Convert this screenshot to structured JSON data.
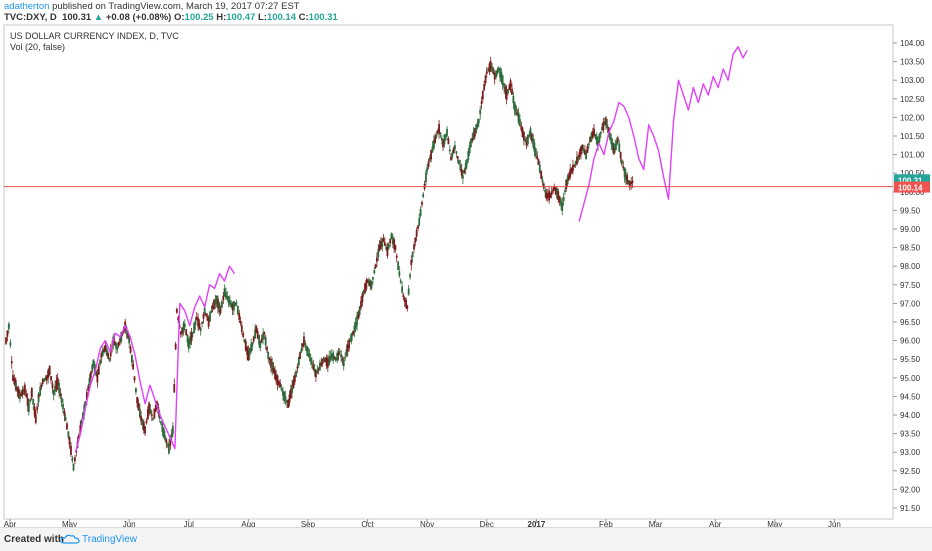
{
  "header": {
    "author": "adatherton",
    "published": "published on TradingView.com, March 19, 2017 07:27 EST",
    "symbol": "TVC:DXY, D",
    "last": "100.31",
    "change": "+0.08 (+0.08%)",
    "o_label": "O:",
    "o_value": "100.25",
    "h_label": "H:",
    "h_value": "100.47",
    "l_label": "L:",
    "l_value": "100.14",
    "c_label": "C:",
    "c_value": "100.31"
  },
  "footer": {
    "created": "Created with",
    "brand": "TradingView"
  },
  "colors": {
    "up": "#2e6b3a",
    "down": "#7a1c1c",
    "projection": "#e040fb",
    "hline": "#ef5350",
    "last_badge": "#26a69a",
    "line_badge": "#ef5350"
  },
  "chart_data": {
    "type": "line",
    "title": "US DOLLAR CURRENCY INDEX, D, TVC",
    "subtitle": "Vol (20, false)",
    "price_axis": {
      "min": 91.25,
      "max": 104.25,
      "ticks": [
        "91.50",
        "92.00",
        "92.50",
        "93.00",
        "93.50",
        "94.00",
        "94.50",
        "95.00",
        "95.50",
        "96.00",
        "96.50",
        "97.00",
        "97.50",
        "98.00",
        "98.50",
        "99.00",
        "99.50",
        "100.00",
        "100.50",
        "101.00",
        "101.50",
        "102.00",
        "102.50",
        "103.00",
        "103.50",
        "104.00"
      ]
    },
    "time_axis": {
      "labels": [
        "Apr",
        "May",
        "Jun",
        "Jul",
        "Aug",
        "Sep",
        "Oct",
        "Nov",
        "Dec",
        "2017",
        "Feb",
        "Mar",
        "Apr",
        "May",
        "Jun"
      ],
      "label_days": [
        4,
        64,
        124,
        184,
        244,
        304,
        364,
        424,
        484,
        534,
        604,
        654,
        714,
        774,
        834
      ]
    },
    "horizontal_line": {
      "price": 100.14,
      "label": "100.14"
    },
    "last_price": {
      "price": 100.31,
      "label": "100.31"
    },
    "price_path": [
      [
        0,
        96.0
      ],
      [
        3,
        96.4
      ],
      [
        7,
        95.0
      ],
      [
        10,
        94.8
      ],
      [
        14,
        94.5
      ],
      [
        19,
        94.7
      ],
      [
        23,
        94.2
      ],
      [
        26,
        94.6
      ],
      [
        30,
        93.9
      ],
      [
        33,
        94.5
      ],
      [
        37,
        94.9
      ],
      [
        41,
        95.0
      ],
      [
        44,
        95.2
      ],
      [
        48,
        94.6
      ],
      [
        52,
        94.9
      ],
      [
        56,
        94.4
      ],
      [
        60,
        93.9
      ],
      [
        64,
        93.3
      ],
      [
        68,
        92.6
      ],
      [
        72,
        93.2
      ],
      [
        76,
        93.8
      ],
      [
        80,
        94.3
      ],
      [
        84,
        94.9
      ],
      [
        88,
        95.4
      ],
      [
        92,
        95.0
      ],
      [
        96,
        95.6
      ],
      [
        100,
        95.8
      ],
      [
        104,
        95.5
      ],
      [
        108,
        96.0
      ],
      [
        112,
        95.8
      ],
      [
        116,
        96.1
      ],
      [
        120,
        96.4
      ],
      [
        124,
        96.0
      ],
      [
        128,
        95.3
      ],
      [
        132,
        94.4
      ],
      [
        136,
        93.9
      ],
      [
        140,
        93.6
      ],
      [
        144,
        94.2
      ],
      [
        148,
        93.9
      ],
      [
        152,
        94.3
      ],
      [
        156,
        93.8
      ],
      [
        160,
        93.4
      ],
      [
        164,
        93.1
      ],
      [
        168,
        93.6
      ],
      [
        172,
        96.8
      ],
      [
        176,
        96.2
      ],
      [
        180,
        96.4
      ],
      [
        184,
        95.9
      ],
      [
        188,
        96.2
      ],
      [
        192,
        96.6
      ],
      [
        196,
        96.3
      ],
      [
        200,
        96.8
      ],
      [
        204,
        96.5
      ],
      [
        208,
        96.9
      ],
      [
        212,
        97.1
      ],
      [
        216,
        96.8
      ],
      [
        220,
        97.3
      ],
      [
        224,
        97.1
      ],
      [
        228,
        96.9
      ],
      [
        232,
        97.0
      ],
      [
        236,
        96.5
      ],
      [
        240,
        96.0
      ],
      [
        244,
        95.6
      ],
      [
        248,
        95.9
      ],
      [
        252,
        96.3
      ],
      [
        256,
        95.9
      ],
      [
        260,
        96.2
      ],
      [
        264,
        95.6
      ],
      [
        268,
        95.3
      ],
      [
        272,
        95.0
      ],
      [
        276,
        94.8
      ],
      [
        280,
        94.5
      ],
      [
        284,
        94.3
      ],
      [
        288,
        94.7
      ],
      [
        292,
        95.1
      ],
      [
        296,
        95.6
      ],
      [
        300,
        96.0
      ],
      [
        304,
        95.7
      ],
      [
        308,
        95.4
      ],
      [
        312,
        95.1
      ],
      [
        316,
        95.3
      ],
      [
        320,
        95.5
      ],
      [
        324,
        95.4
      ],
      [
        328,
        95.6
      ],
      [
        332,
        95.5
      ],
      [
        336,
        95.7
      ],
      [
        340,
        95.4
      ],
      [
        344,
        95.8
      ],
      [
        348,
        96.1
      ],
      [
        352,
        96.4
      ],
      [
        356,
        96.8
      ],
      [
        360,
        97.3
      ],
      [
        364,
        97.6
      ],
      [
        368,
        97.5
      ],
      [
        372,
        98.0
      ],
      [
        376,
        98.5
      ],
      [
        380,
        98.7
      ],
      [
        384,
        98.4
      ],
      [
        388,
        98.8
      ],
      [
        392,
        98.5
      ],
      [
        396,
        97.8
      ],
      [
        400,
        97.2
      ],
      [
        404,
        96.9
      ],
      [
        408,
        98.1
      ],
      [
        412,
        98.7
      ],
      [
        416,
        99.2
      ],
      [
        420,
        99.9
      ],
      [
        424,
        100.6
      ],
      [
        428,
        101.0
      ],
      [
        432,
        101.4
      ],
      [
        436,
        101.7
      ],
      [
        440,
        101.3
      ],
      [
        444,
        101.6
      ],
      [
        448,
        100.9
      ],
      [
        452,
        101.2
      ],
      [
        456,
        100.8
      ],
      [
        460,
        100.4
      ],
      [
        464,
        100.8
      ],
      [
        468,
        101.3
      ],
      [
        472,
        101.6
      ],
      [
        476,
        101.9
      ],
      [
        480,
        102.6
      ],
      [
        484,
        103.2
      ],
      [
        488,
        103.4
      ],
      [
        492,
        103.1
      ],
      [
        496,
        103.3
      ],
      [
        500,
        103.0
      ],
      [
        504,
        102.6
      ],
      [
        508,
        102.9
      ],
      [
        512,
        102.3
      ],
      [
        516,
        102.0
      ],
      [
        520,
        101.6
      ],
      [
        524,
        101.3
      ],
      [
        528,
        101.6
      ],
      [
        532,
        101.2
      ],
      [
        536,
        100.8
      ],
      [
        540,
        100.3
      ],
      [
        544,
        99.9
      ],
      [
        548,
        99.9
      ],
      [
        552,
        100.1
      ],
      [
        556,
        99.9
      ],
      [
        560,
        99.6
      ],
      [
        564,
        100.2
      ],
      [
        568,
        100.5
      ],
      [
        572,
        100.7
      ],
      [
        576,
        100.9
      ],
      [
        580,
        101.2
      ],
      [
        584,
        101.0
      ],
      [
        588,
        101.4
      ],
      [
        592,
        101.6
      ],
      [
        596,
        101.3
      ],
      [
        600,
        101.7
      ],
      [
        604,
        101.9
      ],
      [
        608,
        101.5
      ],
      [
        612,
        101.1
      ],
      [
        616,
        101.4
      ],
      [
        620,
        100.8
      ],
      [
        624,
        100.4
      ],
      [
        628,
        100.2
      ],
      [
        632,
        100.3
      ]
    ],
    "projection_path": [
      [
        577,
        99.2
      ],
      [
        582,
        99.7
      ],
      [
        587,
        100.2
      ],
      [
        592,
        100.9
      ],
      [
        597,
        101.3
      ],
      [
        602,
        101.0
      ],
      [
        607,
        101.6
      ],
      [
        612,
        101.9
      ],
      [
        617,
        102.4
      ],
      [
        622,
        102.3
      ],
      [
        627,
        102.0
      ],
      [
        632,
        101.5
      ],
      [
        637,
        100.9
      ],
      [
        642,
        100.6
      ],
      [
        647,
        101.8
      ],
      [
        652,
        101.5
      ],
      [
        657,
        101.1
      ],
      [
        662,
        100.4
      ],
      [
        667,
        99.8
      ],
      [
        672,
        101.9
      ],
      [
        677,
        103.0
      ],
      [
        682,
        102.6
      ],
      [
        687,
        102.2
      ],
      [
        692,
        102.8
      ],
      [
        697,
        102.4
      ],
      [
        702,
        102.9
      ],
      [
        707,
        102.6
      ],
      [
        712,
        103.1
      ],
      [
        717,
        102.8
      ],
      [
        722,
        103.3
      ],
      [
        727,
        103.0
      ],
      [
        732,
        103.7
      ],
      [
        737,
        103.9
      ],
      [
        742,
        103.6
      ],
      [
        746,
        103.8
      ]
    ],
    "projection_path_2": [
      [
        70,
        93.0
      ],
      [
        75,
        93.5
      ],
      [
        80,
        94.2
      ],
      [
        85,
        94.8
      ],
      [
        90,
        95.2
      ],
      [
        95,
        95.8
      ],
      [
        100,
        96.0
      ],
      [
        105,
        95.7
      ],
      [
        110,
        96.2
      ],
      [
        115,
        96.1
      ],
      [
        120,
        96.4
      ],
      [
        125,
        96.1
      ],
      [
        130,
        95.6
      ],
      [
        135,
        94.9
      ],
      [
        140,
        94.3
      ],
      [
        145,
        94.8
      ],
      [
        150,
        94.4
      ],
      [
        155,
        94.0
      ],
      [
        160,
        93.7
      ],
      [
        165,
        93.4
      ],
      [
        170,
        93.1
      ],
      [
        175,
        97.0
      ],
      [
        180,
        96.8
      ],
      [
        185,
        96.4
      ],
      [
        190,
        96.9
      ],
      [
        195,
        97.2
      ],
      [
        200,
        96.9
      ],
      [
        205,
        97.5
      ],
      [
        210,
        97.4
      ],
      [
        215,
        97.8
      ],
      [
        220,
        97.6
      ],
      [
        225,
        98.0
      ],
      [
        230,
        97.8
      ]
    ]
  }
}
